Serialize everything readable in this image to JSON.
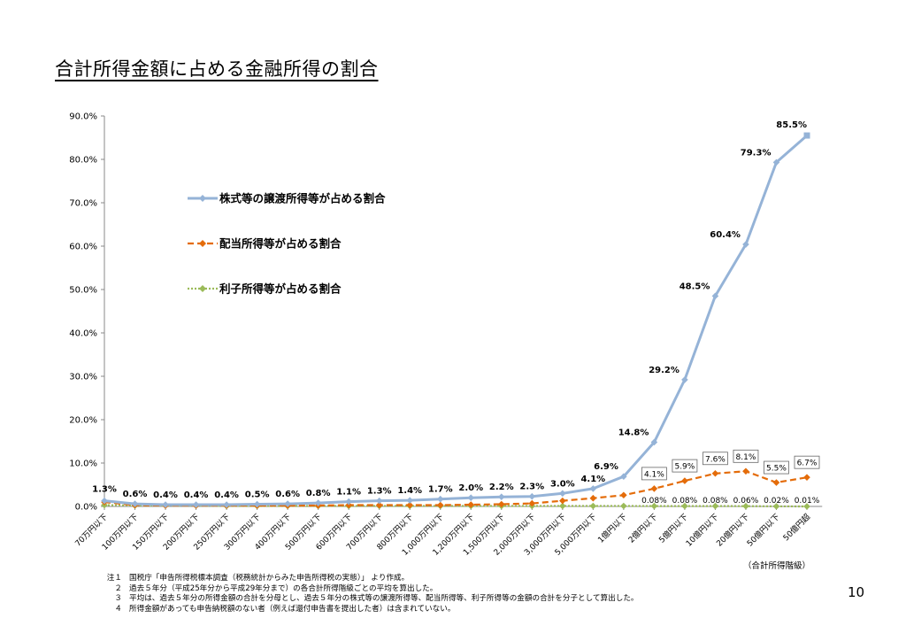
{
  "page": {
    "title": "合計所得金額に占める金融所得の割合",
    "page_number": "10",
    "x_axis_caption": "（合計所得階級）"
  },
  "notes": [
    {
      "num": "注１",
      "text": "国税庁「申告所得税標本調査（税務統計からみた申告所得税の実態）」 より作成。"
    },
    {
      "num": "２",
      "text": "過去５年分（平成25年分から平成29年分まで）の各合計所得階級ごとの平均を算出した。"
    },
    {
      "num": "３",
      "text": "平均は、過去５年分の所得金額の合計を分母とし、過去５年分の株式等の譲渡所得等、配当所得等、利子所得等の金額の合計を分子として算出した。"
    },
    {
      "num": "４",
      "text": "所得金額があっても申告納税額のない者（例えば還付申告書を提出した者）は含まれていない。"
    }
  ],
  "chart_data": {
    "type": "line",
    "y_ticks": [
      "0.0%",
      "10.0%",
      "20.0%",
      "30.0%",
      "40.0%",
      "50.0%",
      "60.0%",
      "70.0%",
      "80.0%",
      "90.0%"
    ],
    "ylim": [
      0,
      90
    ],
    "grid": false,
    "legend_position": "upper-left",
    "categories": [
      "70万円以下",
      "100万円以下",
      "150万円以下",
      "200万円以下",
      "250万円以下",
      "300万円以下",
      "400万円以下",
      "500万円以下",
      "600万円以下",
      "700万円以下",
      "800万円以下",
      "1,000万円以下",
      "1,200万円以下",
      "1,500万円以下",
      "2,000万円以下",
      "3,000万円以下",
      "5,000万円以下",
      "1億円以下",
      "2億円以下",
      "5億円以下",
      "10億円以下",
      "20億円以下",
      "50億円以下",
      "50億円超"
    ],
    "series": [
      {
        "name": "株式等の譲渡所得等が占める割合",
        "color": "#95b3d7",
        "style": "solid",
        "values": [
          1.3,
          0.6,
          0.4,
          0.4,
          0.4,
          0.5,
          0.6,
          0.8,
          1.1,
          1.3,
          1.4,
          1.7,
          2.0,
          2.2,
          2.3,
          3.0,
          4.1,
          6.9,
          14.8,
          29.2,
          48.5,
          60.4,
          79.3,
          85.5
        ],
        "labels": [
          "1.3%",
          "0.6%",
          "0.4%",
          "0.4%",
          "0.4%",
          "0.5%",
          "0.6%",
          "0.8%",
          "1.1%",
          "1.3%",
          "1.4%",
          "1.7%",
          "2.0%",
          "2.2%",
          "2.3%",
          "3.0%",
          "4.1%",
          "6.9%",
          "14.8%",
          "29.2%",
          "48.5%",
          "60.4%",
          "79.3%",
          "85.5%"
        ]
      },
      {
        "name": "配当所得等が占める割合",
        "color": "#e46c0a",
        "style": "dashed",
        "values": [
          1.0,
          0.3,
          0.2,
          0.2,
          0.2,
          0.2,
          0.2,
          0.2,
          0.3,
          0.3,
          0.3,
          0.3,
          0.4,
          0.5,
          0.7,
          1.3,
          1.9,
          2.6,
          4.1,
          5.9,
          7.6,
          8.1,
          5.5,
          6.7
        ],
        "labels": [
          "",
          "",
          "",
          "",
          "",
          "",
          "",
          "",
          "",
          "",
          "",
          "",
          "",
          "",
          "",
          "",
          "",
          "",
          "4.1%",
          "5.9%",
          "7.6%",
          "8.1%",
          "5.5%",
          "6.7%"
        ]
      },
      {
        "name": "利子所得等が占める割合",
        "color": "#9bbb59",
        "style": "dotted",
        "values": [
          0.3,
          0.2,
          0.2,
          0.2,
          0.1,
          0.1,
          0.1,
          0.1,
          0.1,
          0.1,
          0.1,
          0.1,
          0.1,
          0.1,
          0.1,
          0.1,
          0.1,
          0.1,
          0.08,
          0.08,
          0.08,
          0.06,
          0.02,
          0.01
        ],
        "labels": [
          "",
          "",
          "",
          "",
          "",
          "",
          "",
          "",
          "",
          "",
          "",
          "",
          "",
          "",
          "",
          "",
          "",
          "",
          "0.08%",
          "0.08%",
          "0.08%",
          "0.06%",
          "0.02%",
          "0.01%"
        ]
      }
    ]
  }
}
